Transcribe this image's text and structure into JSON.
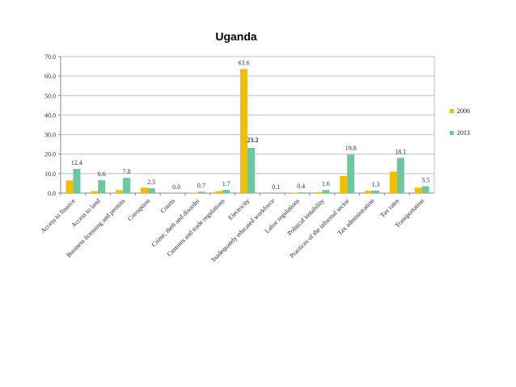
{
  "chart_data": {
    "type": "bar",
    "title": "Uganda",
    "xlabel": "",
    "ylabel": "",
    "ylim": [
      0,
      70
    ],
    "yticks": [
      "0.0",
      "10.0",
      "20.0",
      "30.0",
      "40.0",
      "50.0",
      "60.0",
      "70.0"
    ],
    "grid": "horizontal",
    "legend_position": "right",
    "categories": [
      "Access to finance",
      "Access to land",
      "Business licensing and permits",
      "Corruption",
      "Courts",
      "Crime, theft and disorder",
      "Customs and trade regulations",
      "Electricity",
      "Inadequately educated workforce",
      "Labor regulations",
      "Political instability",
      "Practices of the informal sector",
      "Tax administration",
      "Tax rates",
      "Transportation"
    ],
    "series": [
      {
        "name": "2006",
        "color": "#f0c000",
        "values": [
          6.5,
          1.0,
          1.5,
          2.8,
          0.0,
          0.2,
          1.0,
          63.6,
          0.0,
          0.2,
          0.5,
          8.7,
          1.2,
          11.0,
          2.8
        ]
      },
      {
        "name": "2013",
        "color": "#6cc8a0",
        "values": [
          12.4,
          6.6,
          7.8,
          2.5,
          0.0,
          0.7,
          1.7,
          23.2,
          0.1,
          0.4,
          1.6,
          19.8,
          1.3,
          18.1,
          3.5
        ]
      }
    ],
    "data_labels": [
      "12.4",
      "6.6",
      "7.8",
      "2.5",
      "0.0",
      "0.7",
      "1.7",
      "63.6",
      "23.2",
      "0.1",
      "0.4",
      "1.6",
      "19.8",
      "1.3",
      "18.1",
      "3.5"
    ],
    "label_colors": {
      "default": "#333333",
      "highlight": "#c00000"
    }
  }
}
